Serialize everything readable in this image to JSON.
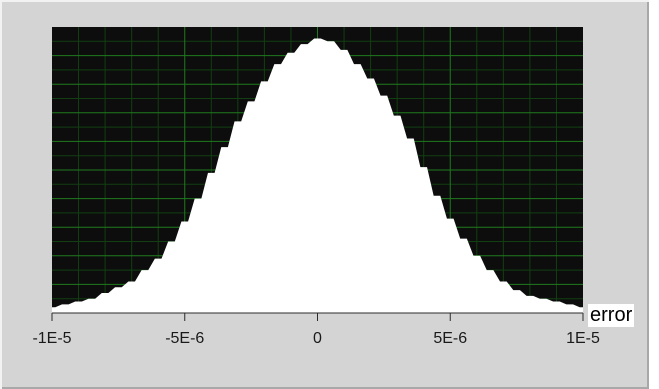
{
  "chart_data": {
    "type": "area",
    "title": "",
    "xlabel": "error",
    "ylabel": "",
    "xlim": [
      -1e-05,
      1e-05
    ],
    "ylim": [
      0,
      1
    ],
    "xticks": [
      -1e-05,
      -5e-06,
      0,
      5e-06,
      1e-05
    ],
    "xtick_labels": [
      "-1E-5",
      "-5E-6",
      "0",
      "5E-6",
      "1E-5"
    ],
    "grid": true,
    "x": [
      -1e-05,
      -9.5e-06,
      -9e-06,
      -8.5e-06,
      -8e-06,
      -7.5e-06,
      -7e-06,
      -6.5e-06,
      -6e-06,
      -5.5e-06,
      -5e-06,
      -4.5e-06,
      -4e-06,
      -3.5e-06,
      -3e-06,
      -2.5e-06,
      -2e-06,
      -1.5e-06,
      -1e-06,
      -5e-07,
      0,
      5e-07,
      1e-06,
      1.5e-06,
      2e-06,
      2.5e-06,
      3e-06,
      3.5e-06,
      4e-06,
      4.5e-06,
      5e-06,
      5.5e-06,
      6e-06,
      6.5e-06,
      7e-06,
      7.5e-06,
      8e-06,
      8.5e-06,
      9e-06,
      9.5e-06,
      1e-05
    ],
    "values": [
      0.02,
      0.03,
      0.04,
      0.05,
      0.07,
      0.09,
      0.11,
      0.15,
      0.19,
      0.25,
      0.32,
      0.4,
      0.49,
      0.58,
      0.67,
      0.74,
      0.81,
      0.87,
      0.91,
      0.94,
      0.96,
      0.95,
      0.92,
      0.87,
      0.82,
      0.76,
      0.69,
      0.61,
      0.51,
      0.41,
      0.33,
      0.26,
      0.2,
      0.15,
      0.11,
      0.08,
      0.06,
      0.05,
      0.04,
      0.03,
      0.02
    ],
    "colors": {
      "plot_background": "#0d0d0d",
      "grid_major": "#1f7a1f",
      "grid_minor": "#123f12",
      "fill": "#ffffff",
      "frame": "#d4d4d4"
    }
  }
}
